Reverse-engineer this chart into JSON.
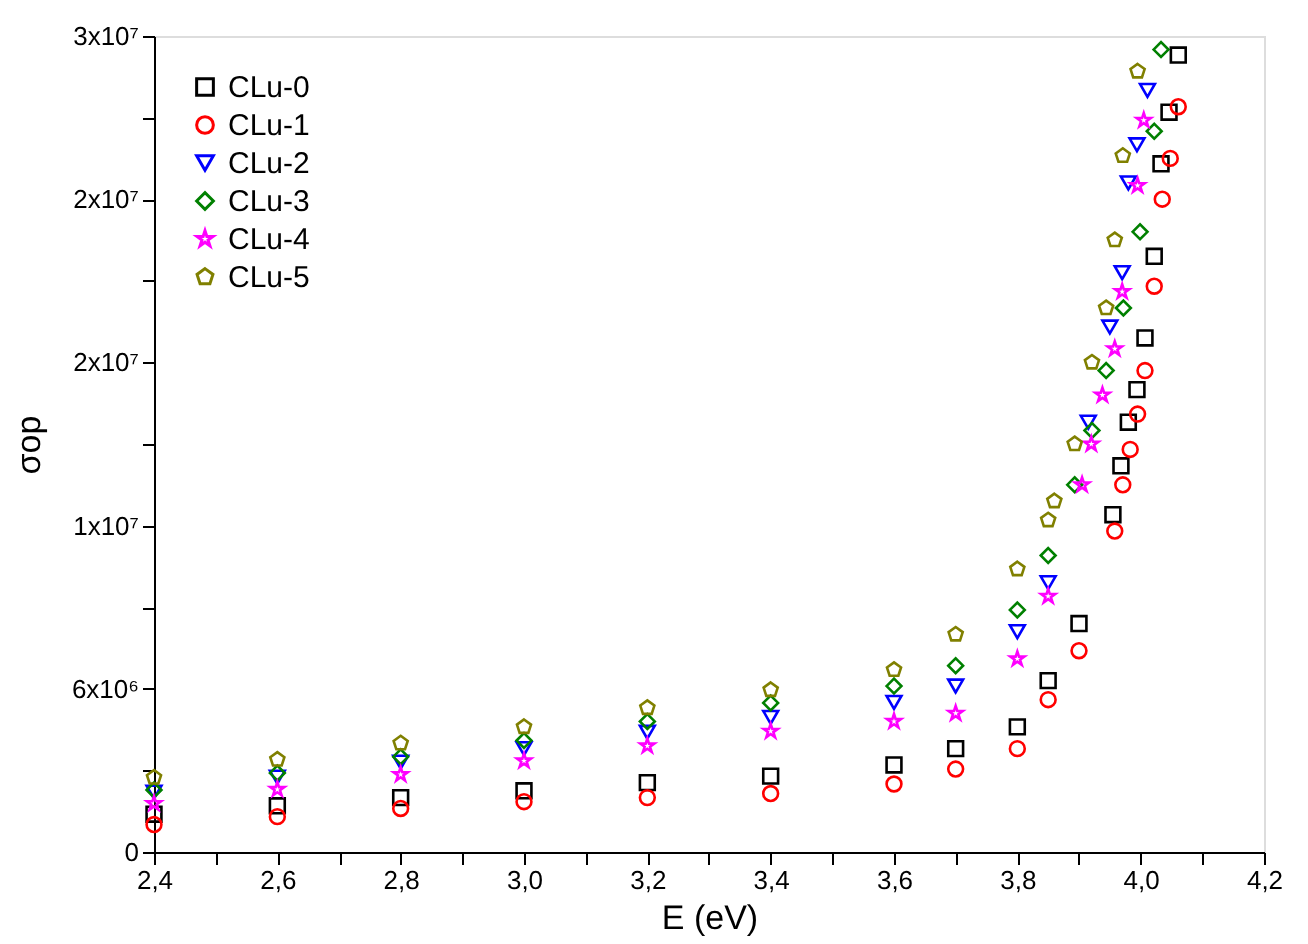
{
  "chart_data": {
    "type": "scatter",
    "xlabel": "E (eV)",
    "ylabel": "σop",
    "xlim": [
      2.4,
      4.2
    ],
    "ylim": [
      0,
      30000000
    ],
    "xticks": [
      {
        "value": 2.4,
        "label": "2,4"
      },
      {
        "value": 2.5,
        "label": null
      },
      {
        "value": 2.6,
        "label": "2,6"
      },
      {
        "value": 2.7,
        "label": null
      },
      {
        "value": 2.8,
        "label": "2,8"
      },
      {
        "value": 2.9,
        "label": null
      },
      {
        "value": 3.0,
        "label": "3,0"
      },
      {
        "value": 3.1,
        "label": null
      },
      {
        "value": 3.2,
        "label": "3,2"
      },
      {
        "value": 3.3,
        "label": null
      },
      {
        "value": 3.4,
        "label": "3,4"
      },
      {
        "value": 3.5,
        "label": null
      },
      {
        "value": 3.6,
        "label": "3,6"
      },
      {
        "value": 3.7,
        "label": null
      },
      {
        "value": 3.8,
        "label": "3,8"
      },
      {
        "value": 3.9,
        "label": null
      },
      {
        "value": 4.0,
        "label": "4,0"
      },
      {
        "value": 4.1,
        "label": null
      },
      {
        "value": 4.2,
        "label": "4,2"
      }
    ],
    "yticks": [
      0,
      {
        "value": 3000000,
        "label": null
      },
      {
        "value": 6000000,
        "label": "6x10⁶"
      },
      {
        "value": 9000000,
        "label": null
      },
      {
        "value": 12000000,
        "label": "1x10⁷"
      },
      {
        "value": 15000000,
        "label": null
      },
      {
        "value": 18000000,
        "label": "2x10⁷"
      },
      {
        "value": 21000000,
        "label": null
      },
      {
        "value": 24000000,
        "label": "2x10⁷"
      },
      {
        "value": 27000000,
        "label": null
      },
      {
        "value": 30000000,
        "label": "3x10⁷"
      }
    ],
    "grid": false,
    "legend": "top left",
    "series": [
      {
        "name": "CLu-0",
        "color": "#000000",
        "marker": "square",
        "x": [
          2.4,
          2.6,
          2.8,
          3.0,
          3.2,
          3.4,
          3.6,
          3.7,
          3.8,
          3.85,
          3.9,
          3.955,
          3.968,
          3.98,
          3.994,
          4.007,
          4.022,
          4.033,
          4.046,
          4.061
        ],
        "values": [
          1390000,
          1700000,
          2000000,
          2250000,
          2550000,
          2790000,
          3200000,
          3800000,
          4600000,
          6300000,
          8400000,
          12400000,
          14200000,
          15800000,
          17000000,
          18900000,
          21900000,
          25300000,
          27200000,
          29300000
        ]
      },
      {
        "name": "CLu-1",
        "color": "#ff0000",
        "marker": "circle",
        "x": [
          2.4,
          2.6,
          2.8,
          3.0,
          3.2,
          3.4,
          3.6,
          3.7,
          3.8,
          3.85,
          3.9,
          3.958,
          3.971,
          3.983,
          3.995,
          4.007,
          4.022,
          4.035,
          4.048,
          4.061
        ],
        "values": [
          1010000,
          1300000,
          1600000,
          1850000,
          2000000,
          2150000,
          2500000,
          3050000,
          3800000,
          5600000,
          7400000,
          11800000,
          13500000,
          14800000,
          16100000,
          17700000,
          20800000,
          24000000,
          25500000,
          27400000
        ]
      },
      {
        "name": "CLu-2",
        "color": "#0000ff",
        "marker": "triangle",
        "x": [
          2.4,
          2.6,
          2.8,
          3.0,
          3.2,
          3.4,
          3.6,
          3.7,
          3.8,
          3.85,
          3.915,
          3.95,
          3.97,
          3.98,
          3.994,
          4.011
        ],
        "values": [
          2200000,
          2750000,
          3300000,
          3800000,
          4400000,
          4950000,
          5500000,
          6100000,
          8100000,
          9900000,
          15800000,
          19300000,
          21300000,
          24600000,
          26000000,
          28000000
        ]
      },
      {
        "name": "CLu-3",
        "color": "#008000",
        "marker": "diamond",
        "x": [
          2.4,
          2.6,
          2.8,
          3.0,
          3.2,
          3.4,
          3.6,
          3.7,
          3.8,
          3.85,
          3.893,
          3.921,
          3.944,
          3.972,
          3.999,
          4.022,
          4.033
        ],
        "values": [
          2280000,
          2900000,
          3500000,
          4100000,
          4800000,
          5480000,
          6100000,
          6850000,
          8900000,
          10900000,
          13500000,
          15500000,
          17700000,
          20000000,
          22800000,
          26500000,
          29500000
        ]
      },
      {
        "name": "CLu-4",
        "color": "#ff00ff",
        "marker": "star",
        "x": [
          2.4,
          2.6,
          2.8,
          3.0,
          3.2,
          3.4,
          3.6,
          3.7,
          3.8,
          3.85,
          3.905,
          3.92,
          3.938,
          3.958,
          3.97,
          3.995,
          4.005
        ],
        "values": [
          1780000,
          2300000,
          2850000,
          3350000,
          3900000,
          4440000,
          4800000,
          5100000,
          7100000,
          9400000,
          13500000,
          15000000,
          16800000,
          18500000,
          20600000,
          24500000,
          26900000
        ]
      },
      {
        "name": "CLu-5",
        "color": "#808000",
        "x": [
          2.4,
          2.6,
          2.8,
          3.0,
          3.2,
          3.4,
          3.6,
          3.7,
          3.8,
          3.85,
          3.86,
          3.893,
          3.921,
          3.944,
          3.958,
          3.971,
          3.995
        ],
        "values": [
          2740000,
          3400000,
          4000000,
          4600000,
          5300000,
          5960000,
          6700000,
          8000000,
          10400000,
          12200000,
          12900000,
          15000000,
          18000000,
          20000000,
          22500000,
          25600000,
          28700000
        ]
      }
    ]
  }
}
